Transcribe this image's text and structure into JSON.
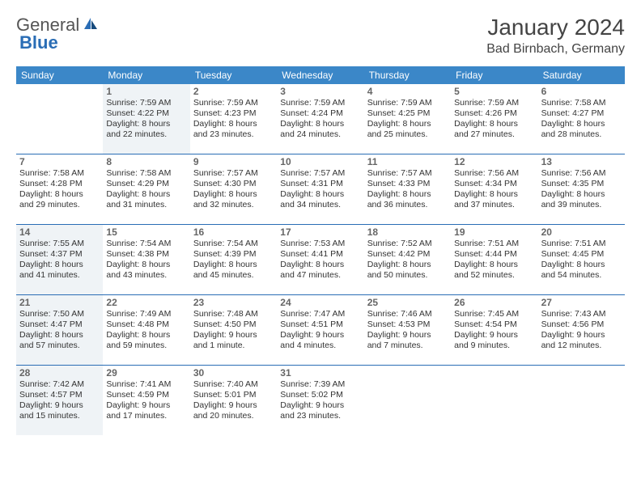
{
  "logo": {
    "part1": "General",
    "part2": "Blue"
  },
  "title": "January 2024",
  "location": "Bad Birnbach, Germany",
  "colors": {
    "header_bg": "#3b87c8",
    "header_text": "#ffffff",
    "rule": "#2a6db5",
    "shaded_bg": "#eff3f6",
    "page_bg": "#ffffff",
    "text": "#333333",
    "daynum": "#666666"
  },
  "fonts": {
    "title_size": 28,
    "location_size": 16,
    "weekday_size": 12,
    "body_size": 10.5
  },
  "weekdays": [
    "Sunday",
    "Monday",
    "Tuesday",
    "Wednesday",
    "Thursday",
    "Friday",
    "Saturday"
  ],
  "weeks": [
    [
      {
        "n": "",
        "shaded": false
      },
      {
        "n": "1",
        "shaded": true,
        "sr": "Sunrise: 7:59 AM",
        "ss": "Sunset: 4:22 PM",
        "d1": "Daylight: 8 hours",
        "d2": "and 22 minutes."
      },
      {
        "n": "2",
        "shaded": false,
        "sr": "Sunrise: 7:59 AM",
        "ss": "Sunset: 4:23 PM",
        "d1": "Daylight: 8 hours",
        "d2": "and 23 minutes."
      },
      {
        "n": "3",
        "shaded": false,
        "sr": "Sunrise: 7:59 AM",
        "ss": "Sunset: 4:24 PM",
        "d1": "Daylight: 8 hours",
        "d2": "and 24 minutes."
      },
      {
        "n": "4",
        "shaded": false,
        "sr": "Sunrise: 7:59 AM",
        "ss": "Sunset: 4:25 PM",
        "d1": "Daylight: 8 hours",
        "d2": "and 25 minutes."
      },
      {
        "n": "5",
        "shaded": false,
        "sr": "Sunrise: 7:59 AM",
        "ss": "Sunset: 4:26 PM",
        "d1": "Daylight: 8 hours",
        "d2": "and 27 minutes."
      },
      {
        "n": "6",
        "shaded": false,
        "sr": "Sunrise: 7:58 AM",
        "ss": "Sunset: 4:27 PM",
        "d1": "Daylight: 8 hours",
        "d2": "and 28 minutes."
      }
    ],
    [
      {
        "n": "7",
        "shaded": false,
        "sr": "Sunrise: 7:58 AM",
        "ss": "Sunset: 4:28 PM",
        "d1": "Daylight: 8 hours",
        "d2": "and 29 minutes."
      },
      {
        "n": "8",
        "shaded": false,
        "sr": "Sunrise: 7:58 AM",
        "ss": "Sunset: 4:29 PM",
        "d1": "Daylight: 8 hours",
        "d2": "and 31 minutes."
      },
      {
        "n": "9",
        "shaded": false,
        "sr": "Sunrise: 7:57 AM",
        "ss": "Sunset: 4:30 PM",
        "d1": "Daylight: 8 hours",
        "d2": "and 32 minutes."
      },
      {
        "n": "10",
        "shaded": false,
        "sr": "Sunrise: 7:57 AM",
        "ss": "Sunset: 4:31 PM",
        "d1": "Daylight: 8 hours",
        "d2": "and 34 minutes."
      },
      {
        "n": "11",
        "shaded": false,
        "sr": "Sunrise: 7:57 AM",
        "ss": "Sunset: 4:33 PM",
        "d1": "Daylight: 8 hours",
        "d2": "and 36 minutes."
      },
      {
        "n": "12",
        "shaded": false,
        "sr": "Sunrise: 7:56 AM",
        "ss": "Sunset: 4:34 PM",
        "d1": "Daylight: 8 hours",
        "d2": "and 37 minutes."
      },
      {
        "n": "13",
        "shaded": false,
        "sr": "Sunrise: 7:56 AM",
        "ss": "Sunset: 4:35 PM",
        "d1": "Daylight: 8 hours",
        "d2": "and 39 minutes."
      }
    ],
    [
      {
        "n": "14",
        "shaded": true,
        "sr": "Sunrise: 7:55 AM",
        "ss": "Sunset: 4:37 PM",
        "d1": "Daylight: 8 hours",
        "d2": "and 41 minutes."
      },
      {
        "n": "15",
        "shaded": false,
        "sr": "Sunrise: 7:54 AM",
        "ss": "Sunset: 4:38 PM",
        "d1": "Daylight: 8 hours",
        "d2": "and 43 minutes."
      },
      {
        "n": "16",
        "shaded": false,
        "sr": "Sunrise: 7:54 AM",
        "ss": "Sunset: 4:39 PM",
        "d1": "Daylight: 8 hours",
        "d2": "and 45 minutes."
      },
      {
        "n": "17",
        "shaded": false,
        "sr": "Sunrise: 7:53 AM",
        "ss": "Sunset: 4:41 PM",
        "d1": "Daylight: 8 hours",
        "d2": "and 47 minutes."
      },
      {
        "n": "18",
        "shaded": false,
        "sr": "Sunrise: 7:52 AM",
        "ss": "Sunset: 4:42 PM",
        "d1": "Daylight: 8 hours",
        "d2": "and 50 minutes."
      },
      {
        "n": "19",
        "shaded": false,
        "sr": "Sunrise: 7:51 AM",
        "ss": "Sunset: 4:44 PM",
        "d1": "Daylight: 8 hours",
        "d2": "and 52 minutes."
      },
      {
        "n": "20",
        "shaded": false,
        "sr": "Sunrise: 7:51 AM",
        "ss": "Sunset: 4:45 PM",
        "d1": "Daylight: 8 hours",
        "d2": "and 54 minutes."
      }
    ],
    [
      {
        "n": "21",
        "shaded": true,
        "sr": "Sunrise: 7:50 AM",
        "ss": "Sunset: 4:47 PM",
        "d1": "Daylight: 8 hours",
        "d2": "and 57 minutes."
      },
      {
        "n": "22",
        "shaded": false,
        "sr": "Sunrise: 7:49 AM",
        "ss": "Sunset: 4:48 PM",
        "d1": "Daylight: 8 hours",
        "d2": "and 59 minutes."
      },
      {
        "n": "23",
        "shaded": false,
        "sr": "Sunrise: 7:48 AM",
        "ss": "Sunset: 4:50 PM",
        "d1": "Daylight: 9 hours",
        "d2": "and 1 minute."
      },
      {
        "n": "24",
        "shaded": false,
        "sr": "Sunrise: 7:47 AM",
        "ss": "Sunset: 4:51 PM",
        "d1": "Daylight: 9 hours",
        "d2": "and 4 minutes."
      },
      {
        "n": "25",
        "shaded": false,
        "sr": "Sunrise: 7:46 AM",
        "ss": "Sunset: 4:53 PM",
        "d1": "Daylight: 9 hours",
        "d2": "and 7 minutes."
      },
      {
        "n": "26",
        "shaded": false,
        "sr": "Sunrise: 7:45 AM",
        "ss": "Sunset: 4:54 PM",
        "d1": "Daylight: 9 hours",
        "d2": "and 9 minutes."
      },
      {
        "n": "27",
        "shaded": false,
        "sr": "Sunrise: 7:43 AM",
        "ss": "Sunset: 4:56 PM",
        "d1": "Daylight: 9 hours",
        "d2": "and 12 minutes."
      }
    ],
    [
      {
        "n": "28",
        "shaded": true,
        "sr": "Sunrise: 7:42 AM",
        "ss": "Sunset: 4:57 PM",
        "d1": "Daylight: 9 hours",
        "d2": "and 15 minutes."
      },
      {
        "n": "29",
        "shaded": false,
        "sr": "Sunrise: 7:41 AM",
        "ss": "Sunset: 4:59 PM",
        "d1": "Daylight: 9 hours",
        "d2": "and 17 minutes."
      },
      {
        "n": "30",
        "shaded": false,
        "sr": "Sunrise: 7:40 AM",
        "ss": "Sunset: 5:01 PM",
        "d1": "Daylight: 9 hours",
        "d2": "and 20 minutes."
      },
      {
        "n": "31",
        "shaded": false,
        "sr": "Sunrise: 7:39 AM",
        "ss": "Sunset: 5:02 PM",
        "d1": "Daylight: 9 hours",
        "d2": "and 23 minutes."
      },
      {
        "n": "",
        "shaded": false
      },
      {
        "n": "",
        "shaded": false
      },
      {
        "n": "",
        "shaded": false
      }
    ]
  ]
}
